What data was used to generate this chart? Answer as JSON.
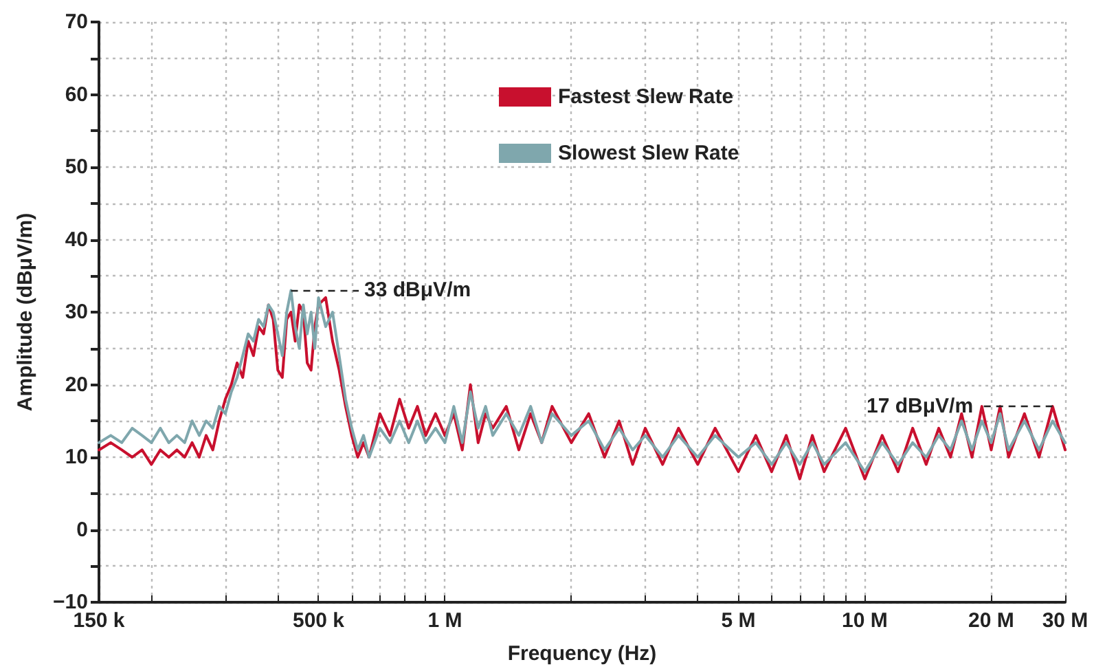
{
  "chart_data": {
    "type": "line",
    "xlabel": "Frequency (Hz)",
    "ylabel": "Amplitude (dBμV/m)",
    "log": "x",
    "grid": true,
    "legend": "top",
    "marker": "none",
    "line_style": "solid",
    "xlim": [
      150000,
      30000000
    ],
    "ylim": [
      -10,
      70
    ],
    "xticks": [
      {
        "value": 150000,
        "label": "150 k"
      },
      {
        "value": 200000,
        "label": null
      },
      {
        "value": 300000,
        "label": null
      },
      {
        "value": 400000,
        "label": null
      },
      {
        "value": 500000,
        "label": "500 k"
      },
      {
        "value": 600000,
        "label": null
      },
      {
        "value": 700000,
        "label": null
      },
      {
        "value": 800000,
        "label": null
      },
      {
        "value": 900000,
        "label": null
      },
      {
        "value": 1000000,
        "label": "1 M"
      },
      {
        "value": 2000000,
        "label": null
      },
      {
        "value": 3000000,
        "label": null
      },
      {
        "value": 4000000,
        "label": null
      },
      {
        "value": 5000000,
        "label": "5 M"
      },
      {
        "value": 6000000,
        "label": null
      },
      {
        "value": 7000000,
        "label": null
      },
      {
        "value": 8000000,
        "label": null
      },
      {
        "value": 9000000,
        "label": null
      },
      {
        "value": 10000000,
        "label": "10 M"
      },
      {
        "value": 20000000,
        "label": "20 M"
      },
      {
        "value": 30000000,
        "label": "30 M"
      }
    ],
    "yticks": [
      {
        "value": -10,
        "label": "−10"
      },
      {
        "value": -5,
        "label": null
      },
      0,
      {
        "value": 5,
        "label": null
      },
      10,
      {
        "value": 15,
        "label": null
      },
      20,
      {
        "value": 25,
        "label": null
      },
      30,
      {
        "value": 35,
        "label": null
      },
      40,
      {
        "value": 45,
        "label": null
      },
      50,
      {
        "value": 55,
        "label": null
      },
      60,
      {
        "value": 65,
        "label": null
      },
      70
    ],
    "annotations": [
      {
        "text": "33 dBμV/m",
        "x": 430000,
        "y": 33
      },
      {
        "text": "17 dBμV/m",
        "x": 28000000,
        "y": 17
      }
    ],
    "x": [
      150000,
      160000,
      170000,
      180000,
      190000,
      200000,
      210000,
      220000,
      230000,
      240000,
      250000,
      260000,
      270000,
      280000,
      290000,
      300000,
      310000,
      320000,
      330000,
      340000,
      350000,
      360000,
      370000,
      380000,
      390000,
      400000,
      410000,
      420000,
      430000,
      440000,
      450000,
      460000,
      470000,
      480000,
      490000,
      500000,
      520000,
      540000,
      560000,
      580000,
      600000,
      620000,
      640000,
      660000,
      700000,
      740000,
      780000,
      820000,
      860000,
      900000,
      950000,
      1000000,
      1050000,
      1100000,
      1150000,
      1200000,
      1250000,
      1300000,
      1400000,
      1500000,
      1600000,
      1700000,
      1800000,
      2000000,
      2200000,
      2400000,
      2600000,
      2800000,
      3000000,
      3300000,
      3600000,
      4000000,
      4400000,
      5000000,
      5500000,
      6000000,
      6500000,
      7000000,
      7500000,
      8000000,
      9000000,
      10000000,
      11000000,
      12000000,
      13000000,
      14000000,
      15000000,
      16000000,
      17000000,
      18000000,
      19000000,
      20000000,
      21000000,
      22000000,
      24000000,
      26000000,
      28000000,
      30000000
    ],
    "series": [
      {
        "name": "Fastest Slew Rate",
        "color": "#c8102e",
        "values": [
          11,
          12,
          11,
          10,
          11,
          9,
          11,
          10,
          11,
          10,
          12,
          10,
          13,
          11,
          15,
          18,
          20,
          23,
          21,
          26,
          24,
          28,
          27,
          31,
          29,
          22,
          21,
          29,
          30,
          26,
          31,
          30,
          23,
          22,
          28,
          31,
          32,
          26,
          22,
          17,
          13,
          10,
          12,
          10,
          16,
          13,
          18,
          14,
          17,
          13,
          16,
          13,
          16,
          11,
          20,
          12,
          16,
          14,
          17,
          11,
          16,
          12,
          17,
          12,
          16,
          10,
          15,
          9,
          14,
          9,
          14,
          9,
          14,
          8,
          13,
          8,
          13,
          7,
          13,
          8,
          14,
          7,
          13,
          8,
          14,
          9,
          14,
          10,
          16,
          10,
          17,
          11,
          17,
          10,
          16,
          10,
          17,
          11
        ]
      },
      {
        "name": "Slowest Slew Rate",
        "color": "#7fa7ad",
        "values": [
          12,
          13,
          12,
          14,
          13,
          12,
          14,
          12,
          13,
          12,
          15,
          13,
          15,
          14,
          17,
          16,
          19,
          21,
          24,
          27,
          26,
          29,
          28,
          31,
          30,
          27,
          24,
          30,
          33,
          28,
          25,
          31,
          27,
          30,
          25,
          32,
          28,
          30,
          24,
          18,
          14,
          11,
          13,
          10,
          14,
          12,
          15,
          12,
          15,
          12,
          14,
          12,
          17,
          12,
          19,
          14,
          17,
          13,
          16,
          13,
          17,
          12,
          16,
          13,
          15,
          11,
          14,
          11,
          13,
          10,
          13,
          10,
          13,
          10,
          12,
          9,
          12,
          9,
          12,
          9,
          12,
          8,
          12,
          9,
          12,
          10,
          13,
          11,
          15,
          11,
          15,
          12,
          16,
          11,
          15,
          11,
          15,
          12
        ]
      }
    ]
  }
}
